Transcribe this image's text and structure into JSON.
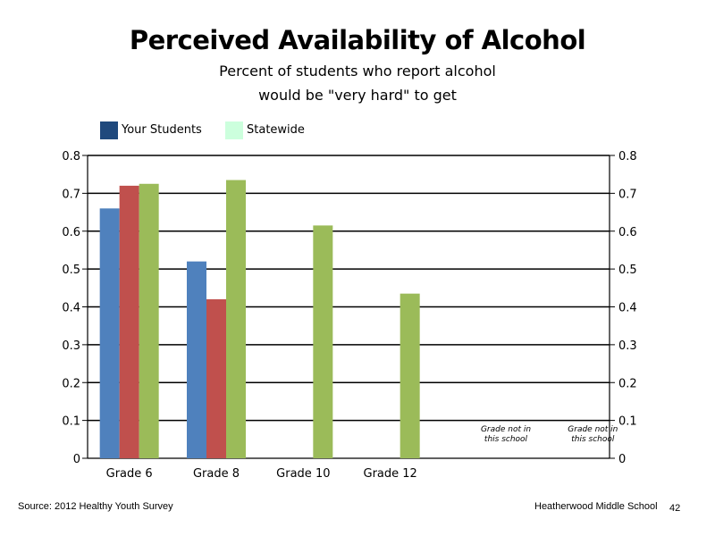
{
  "header": {
    "title": "Perceived Availability of Alcohol",
    "subtitle_line1": "Percent of students who report alcohol",
    "subtitle_line2": "would be \"very hard\" to get"
  },
  "legend": {
    "items": [
      {
        "label": "Your Students",
        "color": "#1f497d"
      },
      {
        "label": "Statewide",
        "color": "#ccffdd"
      }
    ]
  },
  "chart_data": {
    "type": "bar",
    "categories": [
      "Grade 6",
      "Grade 8",
      "Grade 10",
      "Grade 12",
      "",
      ""
    ],
    "series": [
      {
        "values": [
          0.66,
          0.52,
          null,
          null,
          null,
          null
        ],
        "color": "#4f81bd"
      },
      {
        "values": [
          0.72,
          0.42,
          null,
          null,
          null,
          null
        ],
        "color": "#c0504d"
      },
      {
        "values": [
          0.725,
          0.735,
          0.615,
          0.435,
          null,
          null
        ],
        "color": "#9bbb59"
      }
    ],
    "ylim": [
      0,
      0.8
    ],
    "yticks": [
      "0",
      "0.1",
      "0.2",
      "0.3",
      "0.4",
      "0.5",
      "0.6",
      "0.7",
      "0.8"
    ],
    "y2ticks": [
      "0",
      "0.1",
      "0.2",
      "0.3",
      "0.4",
      "0.5",
      "0.6",
      "0.7",
      "0.8"
    ],
    "grid": true,
    "annotations": [
      {
        "category_index": 4,
        "line1": "Grade not in",
        "line2": "this school"
      },
      {
        "category_index": 5,
        "line1": "Grade not in",
        "line2": "this school"
      }
    ]
  },
  "footer": {
    "source": "Source: 2012 Healthy Youth Survey",
    "school": "Heatherwood Middle  School",
    "page_number": "42"
  }
}
